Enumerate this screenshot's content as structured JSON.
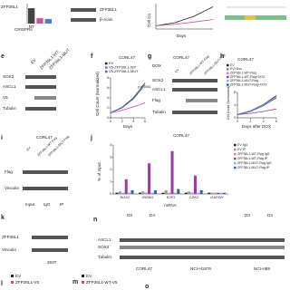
{
  "panels": {
    "c": {
      "protein": "ZFP36L1",
      "group": "NT",
      "xlabel": "CRISPRs",
      "blot": [
        "ZFP36L1",
        "β-Actin"
      ],
      "chart": {
        "type": "line",
        "ylabel": "Cell Co",
        "xlabel": "Days",
        "x": [
          0,
          2,
          4,
          6
        ],
        "xlim": [
          0,
          6
        ],
        "ylim": [
          0,
          8
        ],
        "xticks": [],
        "yticks": [],
        "series": [
          {
            "color": "#222",
            "values": [
              1,
              2,
              4,
              7
            ]
          },
          {
            "color": "#d0509a",
            "values": [
              1,
              1.5,
              2.2,
              3
            ]
          }
        ]
      },
      "bars": {
        "type": "bar",
        "categories": [
          "NT",
          null,
          null
        ],
        "values": [
          1,
          0.35,
          0.3
        ],
        "colors": [
          "#444",
          "#d0509a",
          "#4a7fd0"
        ],
        "ylim": [
          0,
          1.3
        ]
      }
    },
    "e": {
      "letter": "e",
      "columns": [
        "EV",
        "ZFP36L1-WT",
        "ZFP36L1-MUT"
      ],
      "rows": [
        "SOX2",
        "ASCL1",
        "V5",
        "Tubulin"
      ]
    },
    "f": {
      "letter": "f",
      "title": "CORL47",
      "type": "line",
      "ylabel": "Cell Count (Normalized)",
      "xlabel": "Days",
      "pvalue": "p=0.0001",
      "x": [
        0,
        2,
        4,
        6
      ],
      "xlim": [
        0,
        6
      ],
      "ylim": [
        0,
        8
      ],
      "xticks": [
        0,
        2,
        4,
        6
      ],
      "yticks": [
        0,
        2,
        4,
        6,
        8
      ],
      "series": [
        {
          "name": "EV",
          "color": "#222",
          "values": [
            1,
            2.1,
            4,
            7
          ]
        },
        {
          "name": "V5-ZFP36L1-WT",
          "color": "#e0409a",
          "values": [
            1,
            1.5,
            2.2,
            3
          ]
        },
        {
          "name": "V5-ZFP36L1-MUT",
          "color": "#3a6fc8",
          "values": [
            1,
            2,
            3.8,
            6.6
          ]
        }
      ]
    },
    "g": {
      "letter": "g",
      "title": "CORL47",
      "treatment": "DOX",
      "columns": [
        "EV",
        "ZFP36L1-WT-Flag",
        "ZFP36L1-MUT-Flag"
      ],
      "rows": [
        "SOX2",
        "ASCL1",
        "Flag",
        "Tubulin"
      ]
    },
    "h": {
      "letter": "h",
      "title": "CORL47",
      "type": "line",
      "ylabel": "Cell Count (Normalized)",
      "xlabel": "Days after DOX",
      "x": [
        0,
        2,
        4,
        6
      ],
      "xlim": [
        0,
        6
      ],
      "ylim": [
        0,
        8
      ],
      "xticks": [
        0,
        2,
        4,
        6
      ],
      "yticks": [
        0,
        4,
        8
      ],
      "series": [
        {
          "name": "EV",
          "color": "#222",
          "values": [
            1,
            2.2,
            4.2,
            7
          ]
        },
        {
          "name": "EV+Dox",
          "color": "#888",
          "values": [
            1,
            2.1,
            4,
            6.8
          ]
        },
        {
          "name": "ZFP36L1-WT-Flag",
          "color": "#e07ab8",
          "values": [
            1,
            2,
            3.9,
            6.5
          ]
        },
        {
          "name": "ZFP36L1-WT-Flag+DOX",
          "color": "#9b3aa8",
          "values": [
            1,
            1.4,
            2,
            2.8
          ]
        },
        {
          "name": "ZFP36L1-MUT-Flag",
          "color": "#7fb0e8",
          "values": [
            1,
            2.1,
            4,
            6.7
          ]
        },
        {
          "name": "ZFP36L1-MUT-Flag+DOX",
          "color": "#2f5fb8",
          "values": [
            1,
            2,
            3.8,
            6.3
          ]
        }
      ]
    },
    "i": {
      "letter": "i",
      "title": "CORL47",
      "columns": [
        "EV",
        "ZFP36L1-WT-Flag",
        "ZFP36L1-MUT-Flag"
      ],
      "rows": [
        "Flag",
        "Vinculin"
      ],
      "groups": [
        "Input",
        "IgG",
        "IP"
      ]
    },
    "j": {
      "letter": "j",
      "title": "CORL47",
      "type": "bar",
      "ylabel": "% of Input",
      "xlabel": "mRNA",
      "categories": [
        "SOX2",
        "INSM1",
        "E2F1",
        "CDK2",
        "GAPDH"
      ],
      "ylim": [
        0,
        4
      ],
      "yticks": [
        0,
        1,
        2,
        3,
        4
      ],
      "series": [
        {
          "name": "EV IgG",
          "color": "#222",
          "values": [
            0.1,
            0.1,
            0.1,
            0.1,
            0.1
          ]
        },
        {
          "name": "EV IP",
          "color": "#999",
          "values": [
            0.2,
            0.2,
            0.3,
            0.2,
            0.1
          ]
        },
        {
          "name": "ZFP36L1-WT-Flag IgG",
          "color": "#e07ab8",
          "values": [
            0.1,
            0.1,
            0.1,
            0.1,
            0.1
          ]
        },
        {
          "name": "ZFP36L1-WT-Flag IP",
          "color": "#9b3aa8",
          "values": [
            1.2,
            2.5,
            3.5,
            1.5,
            0.1
          ]
        },
        {
          "name": "ZFP36L1-MUT-Flag IgG",
          "color": "#7fb0e8",
          "values": [
            0.1,
            0.1,
            0.1,
            0.1,
            0.1
          ]
        },
        {
          "name": "ZFP36L1-MUT-Flag IP",
          "color": "#2f5fb8",
          "values": [
            0.3,
            0.3,
            0.4,
            0.3,
            0.1
          ]
        }
      ]
    },
    "k": {
      "letter": "k",
      "rows": [
        "ZFP36L1",
        "Vinculin"
      ],
      "cell": "293T"
    },
    "n": {
      "letter": "n",
      "days": [
        "D3",
        "D4",
        "D3",
        "D4"
      ],
      "rows": [
        "ASCL1",
        "SOX2",
        "Tubulin"
      ],
      "cells": [
        "CORL47",
        "NCI-H1876",
        "NCI-H69"
      ]
    },
    "l": {
      "letter": "l",
      "legend": [
        "EV",
        "ZFP36L1-V5"
      ]
    },
    "m": {
      "letter": "m",
      "legend": [
        "EV",
        "ZFP36L1-WT-V5"
      ]
    },
    "o": {
      "letter": "o"
    }
  }
}
